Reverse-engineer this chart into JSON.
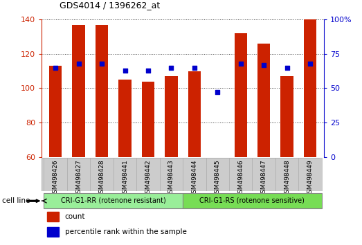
{
  "title": "GDS4014 / 1396262_at",
  "samples": [
    "GSM498426",
    "GSM498427",
    "GSM498428",
    "GSM498441",
    "GSM498442",
    "GSM498443",
    "GSM498444",
    "GSM498445",
    "GSM498446",
    "GSM498447",
    "GSM498448",
    "GSM498449"
  ],
  "count_values": [
    113,
    137,
    137,
    105,
    104,
    107,
    110,
    60,
    132,
    126,
    107,
    140
  ],
  "percentile_values": [
    65,
    68,
    68,
    63,
    63,
    65,
    65,
    47,
    68,
    67,
    65,
    68
  ],
  "bar_bottom": 60,
  "ylim_left": [
    60,
    140
  ],
  "ylim_right": [
    0,
    100
  ],
  "yticks_left": [
    60,
    80,
    100,
    120,
    140
  ],
  "yticks_right": [
    0,
    25,
    50,
    75,
    100
  ],
  "bar_color": "#cc2200",
  "dot_color": "#0000cc",
  "cell_line_groups": [
    {
      "label": "CRI-G1-RR (rotenone resistant)",
      "start": 0,
      "end": 6
    },
    {
      "label": "CRI-G1-RS (rotenone sensitive)",
      "start": 6,
      "end": 12
    }
  ],
  "group_colors": [
    "#99ee99",
    "#77dd55"
  ],
  "cell_line_label": "cell line",
  "legend_count_label": "count",
  "legend_percentile_label": "percentile rank within the sample",
  "tick_area_color": "#cccccc"
}
